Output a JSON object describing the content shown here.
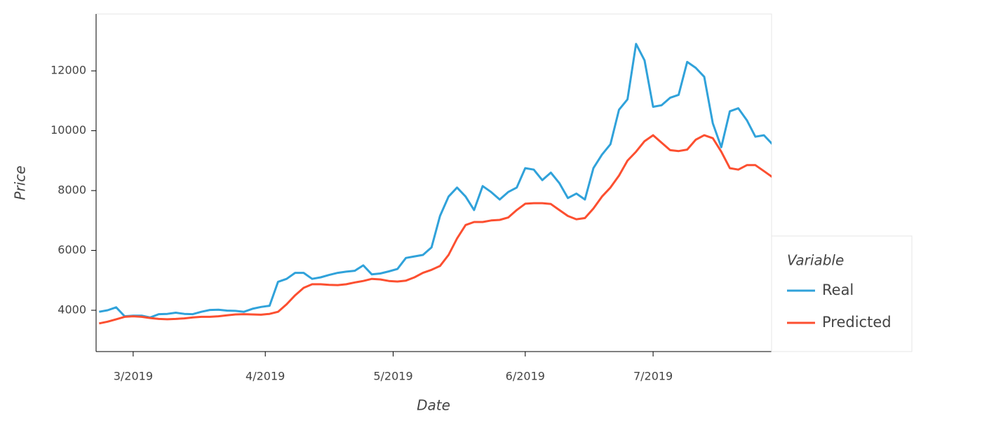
{
  "chart_data": {
    "type": "line",
    "x_label": "Date",
    "y_label": "Price",
    "legend_title": "Variable",
    "legend": "right",
    "x": [
      51,
      53,
      55,
      57,
      59,
      61,
      63,
      65,
      67,
      69,
      71,
      73,
      75,
      77,
      79,
      81,
      83,
      85,
      87,
      89,
      91,
      93,
      95,
      97,
      99,
      101,
      103,
      105,
      107,
      109,
      111,
      113,
      115,
      117,
      119,
      121,
      123,
      125,
      127,
      129,
      131,
      133,
      135,
      137,
      139,
      141,
      143,
      145,
      147,
      149,
      151,
      153,
      155,
      157,
      159,
      161,
      163,
      165,
      167,
      169,
      171,
      173,
      175,
      177,
      179,
      181,
      183,
      185,
      187,
      189,
      191,
      193,
      195,
      197,
      199,
      201,
      203,
      205,
      207,
      209
    ],
    "series": [
      {
        "name": "Real",
        "color": "#30a2da",
        "values": [
          3950,
          4000,
          4100,
          3800,
          3820,
          3820,
          3760,
          3870,
          3880,
          3920,
          3880,
          3870,
          3950,
          4010,
          4020,
          3990,
          3980,
          3950,
          4050,
          4110,
          4150,
          4950,
          5050,
          5250,
          5250,
          5050,
          5100,
          5180,
          5250,
          5290,
          5320,
          5500,
          5200,
          5230,
          5300,
          5380,
          5750,
          5800,
          5850,
          6100,
          7150,
          7800,
          8100,
          7800,
          7350,
          8150,
          7950,
          7700,
          7950,
          8100,
          8750,
          8700,
          8350,
          8600,
          8250,
          7750,
          7900,
          7700,
          8750,
          9200,
          9550,
          10700,
          11050,
          12900,
          12350,
          10800,
          10850,
          11100,
          11200,
          12300,
          12100,
          11800,
          10250,
          9450,
          10650,
          10750,
          10350,
          9800,
          9850,
          9550
        ]
      },
      {
        "name": "Predicted",
        "color": "#fc4f30",
        "values": [
          3560,
          3620,
          3700,
          3780,
          3800,
          3780,
          3740,
          3710,
          3700,
          3710,
          3730,
          3760,
          3780,
          3780,
          3800,
          3830,
          3860,
          3870,
          3860,
          3850,
          3880,
          3950,
          4200,
          4500,
          4750,
          4870,
          4870,
          4850,
          4840,
          4870,
          4930,
          4980,
          5050,
          5030,
          4980,
          4960,
          4990,
          5100,
          5250,
          5350,
          5480,
          5850,
          6400,
          6850,
          6950,
          6950,
          7000,
          7020,
          7100,
          7350,
          7560,
          7580,
          7580,
          7550,
          7350,
          7150,
          7040,
          7080,
          7400,
          7800,
          8100,
          8500,
          9000,
          9300,
          9650,
          9850,
          9600,
          9350,
          9320,
          9370,
          9700,
          9850,
          9750,
          9300,
          8750,
          8700,
          8850,
          8850,
          8650,
          8450
        ]
      }
    ],
    "xlim": [
      50.3,
      208.8
    ],
    "xticks": [
      {
        "value": 59,
        "label": "3/2019"
      },
      {
        "value": 90,
        "label": "4/2019"
      },
      {
        "value": 120,
        "label": "5/2019"
      },
      {
        "value": 151,
        "label": "6/2019"
      },
      {
        "value": 181,
        "label": "7/2019"
      }
    ],
    "ylim": [
      2620,
      13900
    ],
    "yticks": [
      4000,
      6000,
      8000,
      10000,
      12000
    ]
  }
}
